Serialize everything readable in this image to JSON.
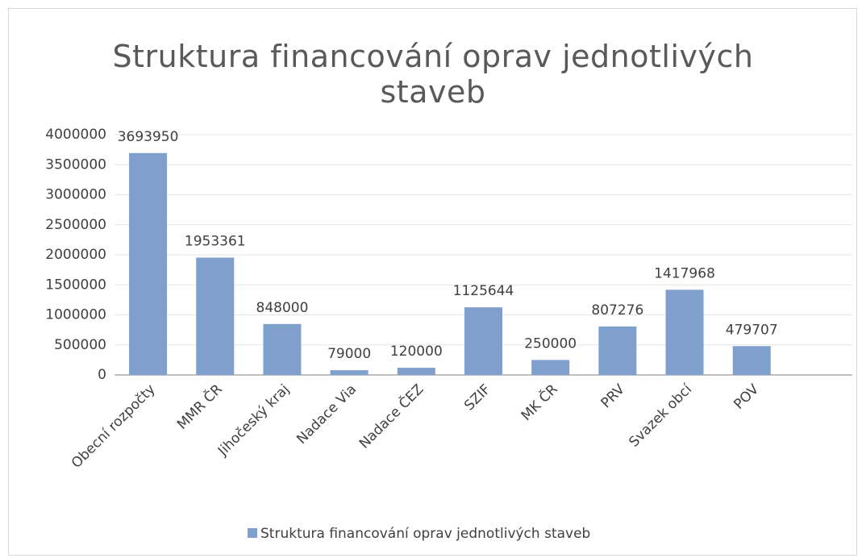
{
  "chart_data": {
    "type": "bar",
    "title": "Struktura financování oprav jednotlivých staveb",
    "categories": [
      "Obecní rozpočty",
      "MMR ČR",
      "Jihočeský kraj",
      "Nadace Via",
      "Nadace ČEZ",
      "SZIF",
      "MK ČR",
      "PRV",
      "Svazek obcí",
      "POV",
      null
    ],
    "series": [
      {
        "name": "Struktura financování oprav jednotlivých staveb",
        "color": "#7f9fcc",
        "values": [
          3693950,
          1953361,
          848000,
          79000,
          120000,
          1125644,
          250000,
          807276,
          1417968,
          479707,
          null
        ]
      }
    ],
    "ylim": [
      0,
      4000000
    ],
    "yticks": [
      0,
      500000,
      1000000,
      1500000,
      2000000,
      2500000,
      3000000,
      3500000,
      4000000
    ],
    "grid": true,
    "legend": "bottom"
  }
}
